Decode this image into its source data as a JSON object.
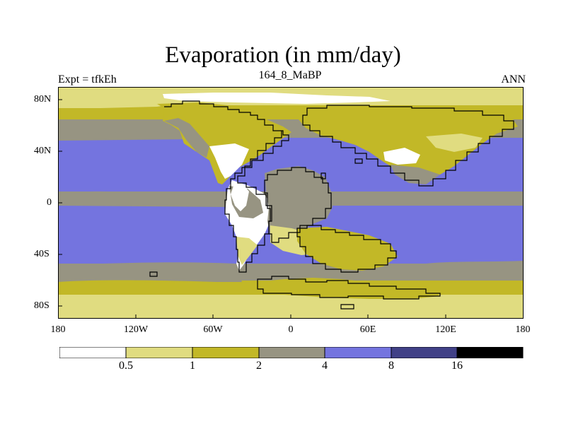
{
  "title": "Evaporation (in mm/day)",
  "left_subtitle": "Expt = tfkEh",
  "center_subtitle": "164_8_MaBP",
  "right_subtitle": "ANN",
  "colors": {
    "lt_0_5": "#ffffff",
    "c_0_5_1": "#e0dc80",
    "c_1_2": "#c2b827",
    "c_2_4": "#979482",
    "c_4_8": "#7474df",
    "c_8_16": "#414187",
    "gt_16": "#000000",
    "coastline": "#000000"
  },
  "x_axis": {
    "ticks": [
      "180",
      "120W",
      "60W",
      "0",
      "60E",
      "120E",
      "180"
    ]
  },
  "y_axis": {
    "ticks": [
      "80N",
      "40N",
      "0",
      "40S",
      "80S"
    ]
  },
  "colorbar": {
    "levels": [
      "0.5",
      "1",
      "2",
      "4",
      "8",
      "16"
    ],
    "bins": [
      {
        "range": "<0.5",
        "color": "#ffffff"
      },
      {
        "range": "0.5-1",
        "color": "#e0dc80"
      },
      {
        "range": "1-2",
        "color": "#c2b827"
      },
      {
        "range": "2-4",
        "color": "#979482"
      },
      {
        "range": "4-8",
        "color": "#7474df"
      },
      {
        "range": "8-16",
        "color": "#414187"
      },
      {
        "range": ">16",
        "color": "#000000"
      }
    ]
  }
}
